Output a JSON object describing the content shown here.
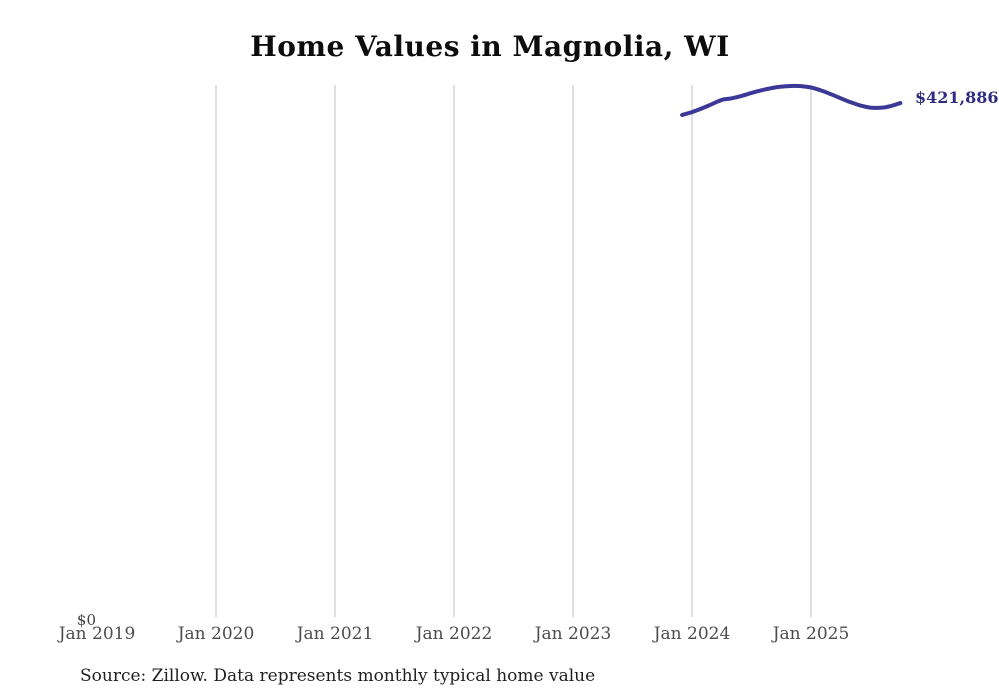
{
  "title": "Home Values in Magnolia, WI",
  "source_note": "Source: Zillow. Data represents monthly typical home value",
  "y_axis": {
    "zero_label": "$0"
  },
  "end_label": "$421,886",
  "colors": {
    "line": "#3b3897",
    "end_label": "#302c80",
    "grid": "#cfcfcf",
    "tick_text": "#4c4c4c",
    "title_text": "#0d0d0d",
    "source_text": "#1f1f1f",
    "background": "#ffffff"
  },
  "chart_data": {
    "type": "line",
    "title": "Home Values in Magnolia, WI",
    "xlabel": "",
    "ylabel": "",
    "ylim": [
      0,
      445000
    ],
    "grid": "vertical-only",
    "legend": "none",
    "x_ticks": [
      {
        "label": "Jan 2019",
        "month_index": 0,
        "gridline": false
      },
      {
        "label": "Jan 2020",
        "month_index": 12,
        "gridline": true
      },
      {
        "label": "Jan 2021",
        "month_index": 24,
        "gridline": true
      },
      {
        "label": "Jan 2022",
        "month_index": 36,
        "gridline": true
      },
      {
        "label": "Jan 2023",
        "month_index": 48,
        "gridline": true
      },
      {
        "label": "Jan 2024",
        "month_index": 60,
        "gridline": true
      },
      {
        "label": "Jan 2025",
        "month_index": 72,
        "gridline": true
      }
    ],
    "series": [
      {
        "name": "Typical home value",
        "latest_label": "$421,886",
        "points": [
          {
            "month": "2023-12",
            "month_index": 59,
            "value": 412100
          },
          {
            "month": "2024-01",
            "month_index": 60,
            "value": 414500
          },
          {
            "month": "2024-02",
            "month_index": 61,
            "value": 417500
          },
          {
            "month": "2024-03",
            "month_index": 62,
            "value": 421000
          },
          {
            "month": "2024-04",
            "month_index": 63,
            "value": 424500
          },
          {
            "month": "2024-05",
            "month_index": 64,
            "value": 425800
          },
          {
            "month": "2024-06",
            "month_index": 65,
            "value": 427800
          },
          {
            "month": "2024-07",
            "month_index": 66,
            "value": 430200
          },
          {
            "month": "2024-08",
            "month_index": 67,
            "value": 432400
          },
          {
            "month": "2024-09",
            "month_index": 68,
            "value": 434200
          },
          {
            "month": "2024-10",
            "month_index": 69,
            "value": 435400
          },
          {
            "month": "2024-11",
            "month_index": 70,
            "value": 435900
          },
          {
            "month": "2024-12",
            "month_index": 71,
            "value": 435800
          },
          {
            "month": "2025-01",
            "month_index": 72,
            "value": 434700
          },
          {
            "month": "2025-02",
            "month_index": 73,
            "value": 432300
          },
          {
            "month": "2025-03",
            "month_index": 74,
            "value": 429200
          },
          {
            "month": "2025-04",
            "month_index": 75,
            "value": 425800
          },
          {
            "month": "2025-05",
            "month_index": 76,
            "value": 422500
          },
          {
            "month": "2025-06",
            "month_index": 77,
            "value": 419800
          },
          {
            "month": "2025-07",
            "month_index": 78,
            "value": 418200
          },
          {
            "month": "2025-08",
            "month_index": 79,
            "value": 418000
          },
          {
            "month": "2025-09",
            "month_index": 80,
            "value": 419300
          },
          {
            "month": "2025-10",
            "month_index": 81,
            "value": 421886
          }
        ]
      }
    ]
  }
}
